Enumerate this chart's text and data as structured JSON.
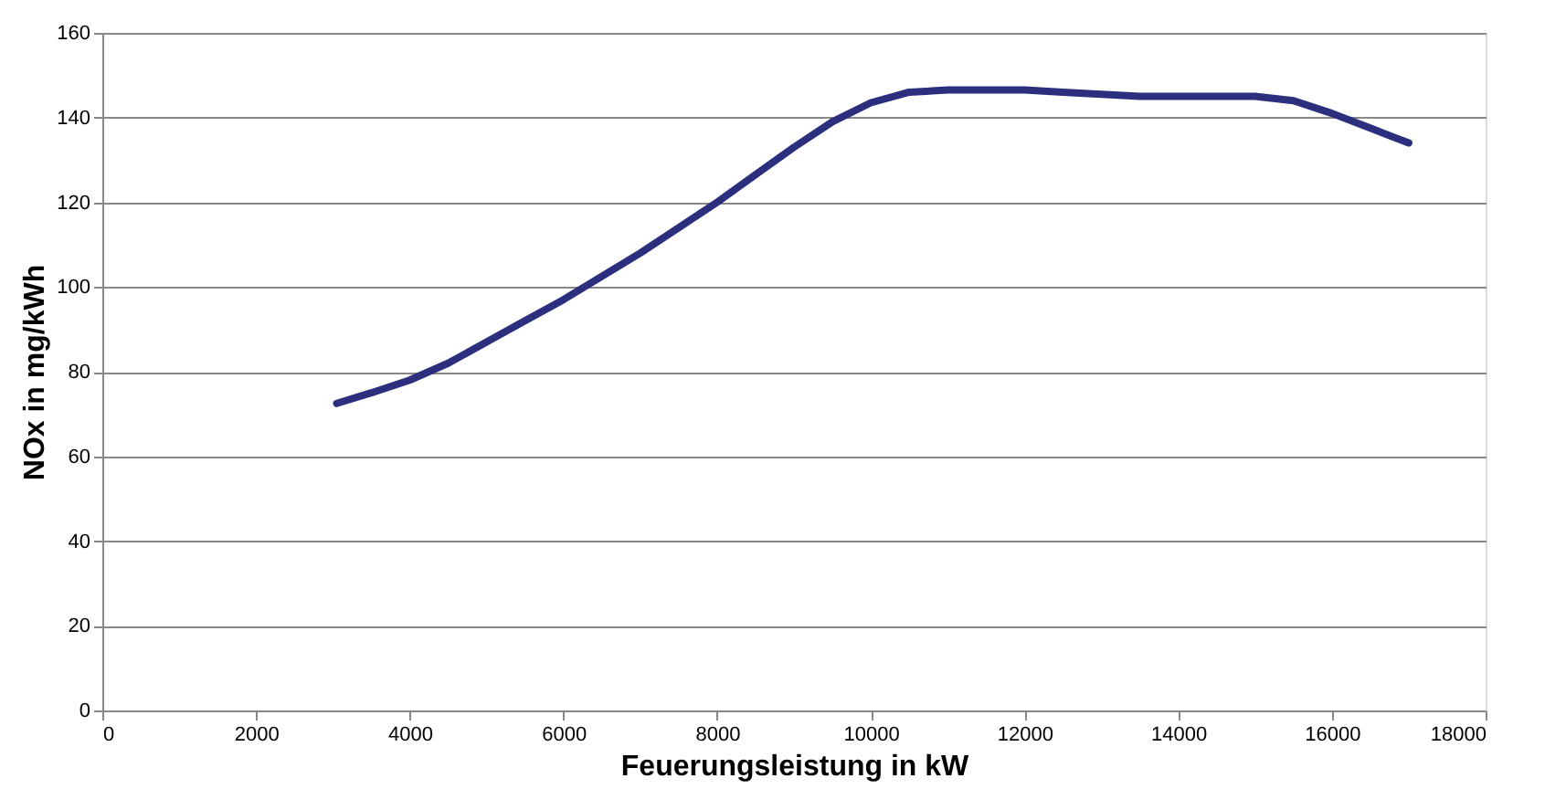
{
  "chart_data": {
    "type": "line",
    "xlabel": "Feuerungsleistung  in kW",
    "ylabel": "NOx in mg/kWh",
    "x": [
      3050,
      3500,
      4000,
      4500,
      5000,
      5500,
      6000,
      6500,
      7000,
      7500,
      8000,
      8500,
      9000,
      9500,
      10000,
      10500,
      11000,
      11500,
      12000,
      12500,
      13000,
      13500,
      14000,
      14500,
      15000,
      15500,
      16000,
      16500,
      17000
    ],
    "series": [
      {
        "color": "#2b2f7e",
        "values": [
          72.5,
          75,
          78,
          82,
          87,
          92,
          97,
          102.5,
          108,
          114,
          120,
          126.5,
          133,
          139,
          143.5,
          146,
          146.5,
          146.5,
          146.5,
          146,
          145.5,
          145,
          145,
          145,
          145,
          144,
          141,
          137.5,
          134
        ]
      }
    ],
    "xlim": [
      0,
      18000
    ],
    "xticks": [
      0,
      2000,
      4000,
      6000,
      8000,
      10000,
      12000,
      14000,
      16000,
      18000
    ],
    "ylim": [
      0,
      160
    ],
    "yticks": [
      0,
      20,
      40,
      60,
      80,
      100,
      120,
      140,
      160
    ],
    "grid": "y",
    "marker": "none",
    "line_style": "solid"
  }
}
